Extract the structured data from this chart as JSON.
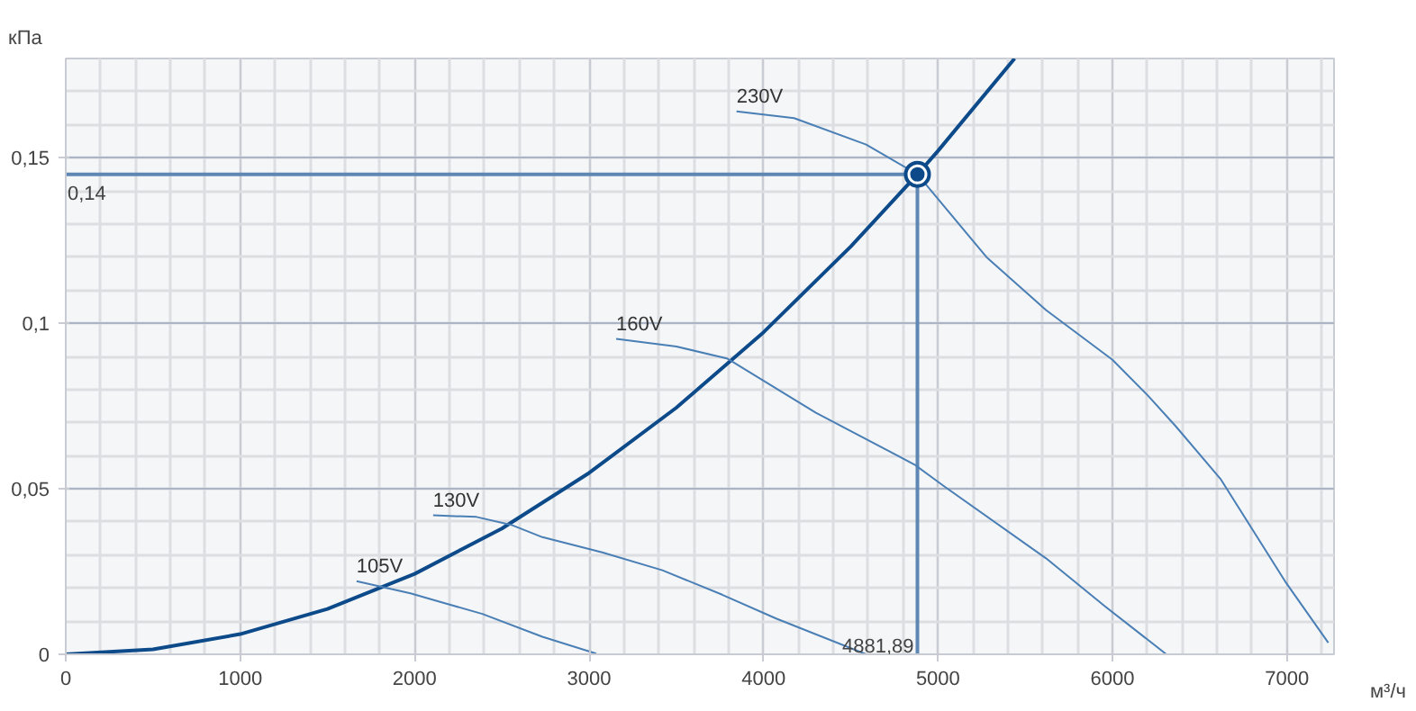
{
  "chart_data": {
    "type": "line",
    "xlabel": "м³/ч",
    "ylabel": "кПа",
    "xlim": [
      0,
      7270
    ],
    "ylim": [
      0,
      0.18
    ],
    "xticks": [
      0,
      1000,
      2000,
      3000,
      4000,
      5000,
      6000,
      7000
    ],
    "yticks": [
      0,
      {
        "value": 0.05,
        "label": "0,05"
      },
      {
        "value": 0.1,
        "label": "0,1"
      },
      {
        "value": 0.15,
        "label": "0,15"
      }
    ],
    "grid": true,
    "marker": "none",
    "line_style": "solid",
    "series": [
      {
        "color": "#0d4a8a",
        "x": [
          0,
          500,
          1000,
          1500,
          2000,
          2500,
          3000,
          3500,
          4000,
          4500,
          4881.89,
          5000,
          5439
        ],
        "values": [
          0,
          0.0015,
          0.0061,
          0.0137,
          0.0243,
          0.038,
          0.0548,
          0.0745,
          0.0973,
          0.1232,
          0.145,
          0.1521,
          0.18
        ]
      },
      {
        "name": "230V",
        "color": "#4a7fb5",
        "x": [
          3845,
          4175,
          4588,
          4882,
          5278,
          5619,
          6000,
          6206,
          6361,
          6619,
          6990,
          7237
        ],
        "values": [
          0.164,
          0.162,
          0.154,
          0.145,
          0.12,
          0.104,
          0.089,
          0.078,
          0.069,
          0.053,
          0.022,
          0.0035
        ]
      },
      {
        "name": "160V",
        "color": "#4a7fb5",
        "x": [
          3155,
          3500,
          3794,
          4300,
          4866,
          5031,
          5619,
          5959,
          6309
        ],
        "values": [
          0.0953,
          0.093,
          0.0893,
          0.073,
          0.0573,
          0.0509,
          0.029,
          0.0144,
          0.0
        ]
      },
      {
        "name": "130V",
        "color": "#4a7fb5",
        "x": [
          2106,
          2354,
          2560,
          2732,
          3075,
          3420,
          3763,
          4072,
          4588
        ],
        "values": [
          0.042,
          0.0415,
          0.039,
          0.0354,
          0.0308,
          0.0254,
          0.018,
          0.0108,
          0.0
        ]
      },
      {
        "name": "105V",
        "color": "#4a7fb5",
        "x": [
          1667,
          1976,
          2182,
          2388,
          2732,
          3041
        ],
        "values": [
          0.0221,
          0.0184,
          0.0153,
          0.0122,
          0.0053,
          0.0002
        ]
      },
      {
        "type": "scatter",
        "marker": "circle",
        "color": "#0d4a8a",
        "x": [
          4881.89
        ],
        "values": [
          0.145
        ]
      }
    ],
    "ref_lines": [
      {
        "axis": "y",
        "value": 0.145,
        "label": "0,14",
        "color": "#5f87b3"
      },
      {
        "axis": "x",
        "value": 4881.89,
        "label": "4881,89",
        "color": "#5f87b3"
      }
    ]
  }
}
